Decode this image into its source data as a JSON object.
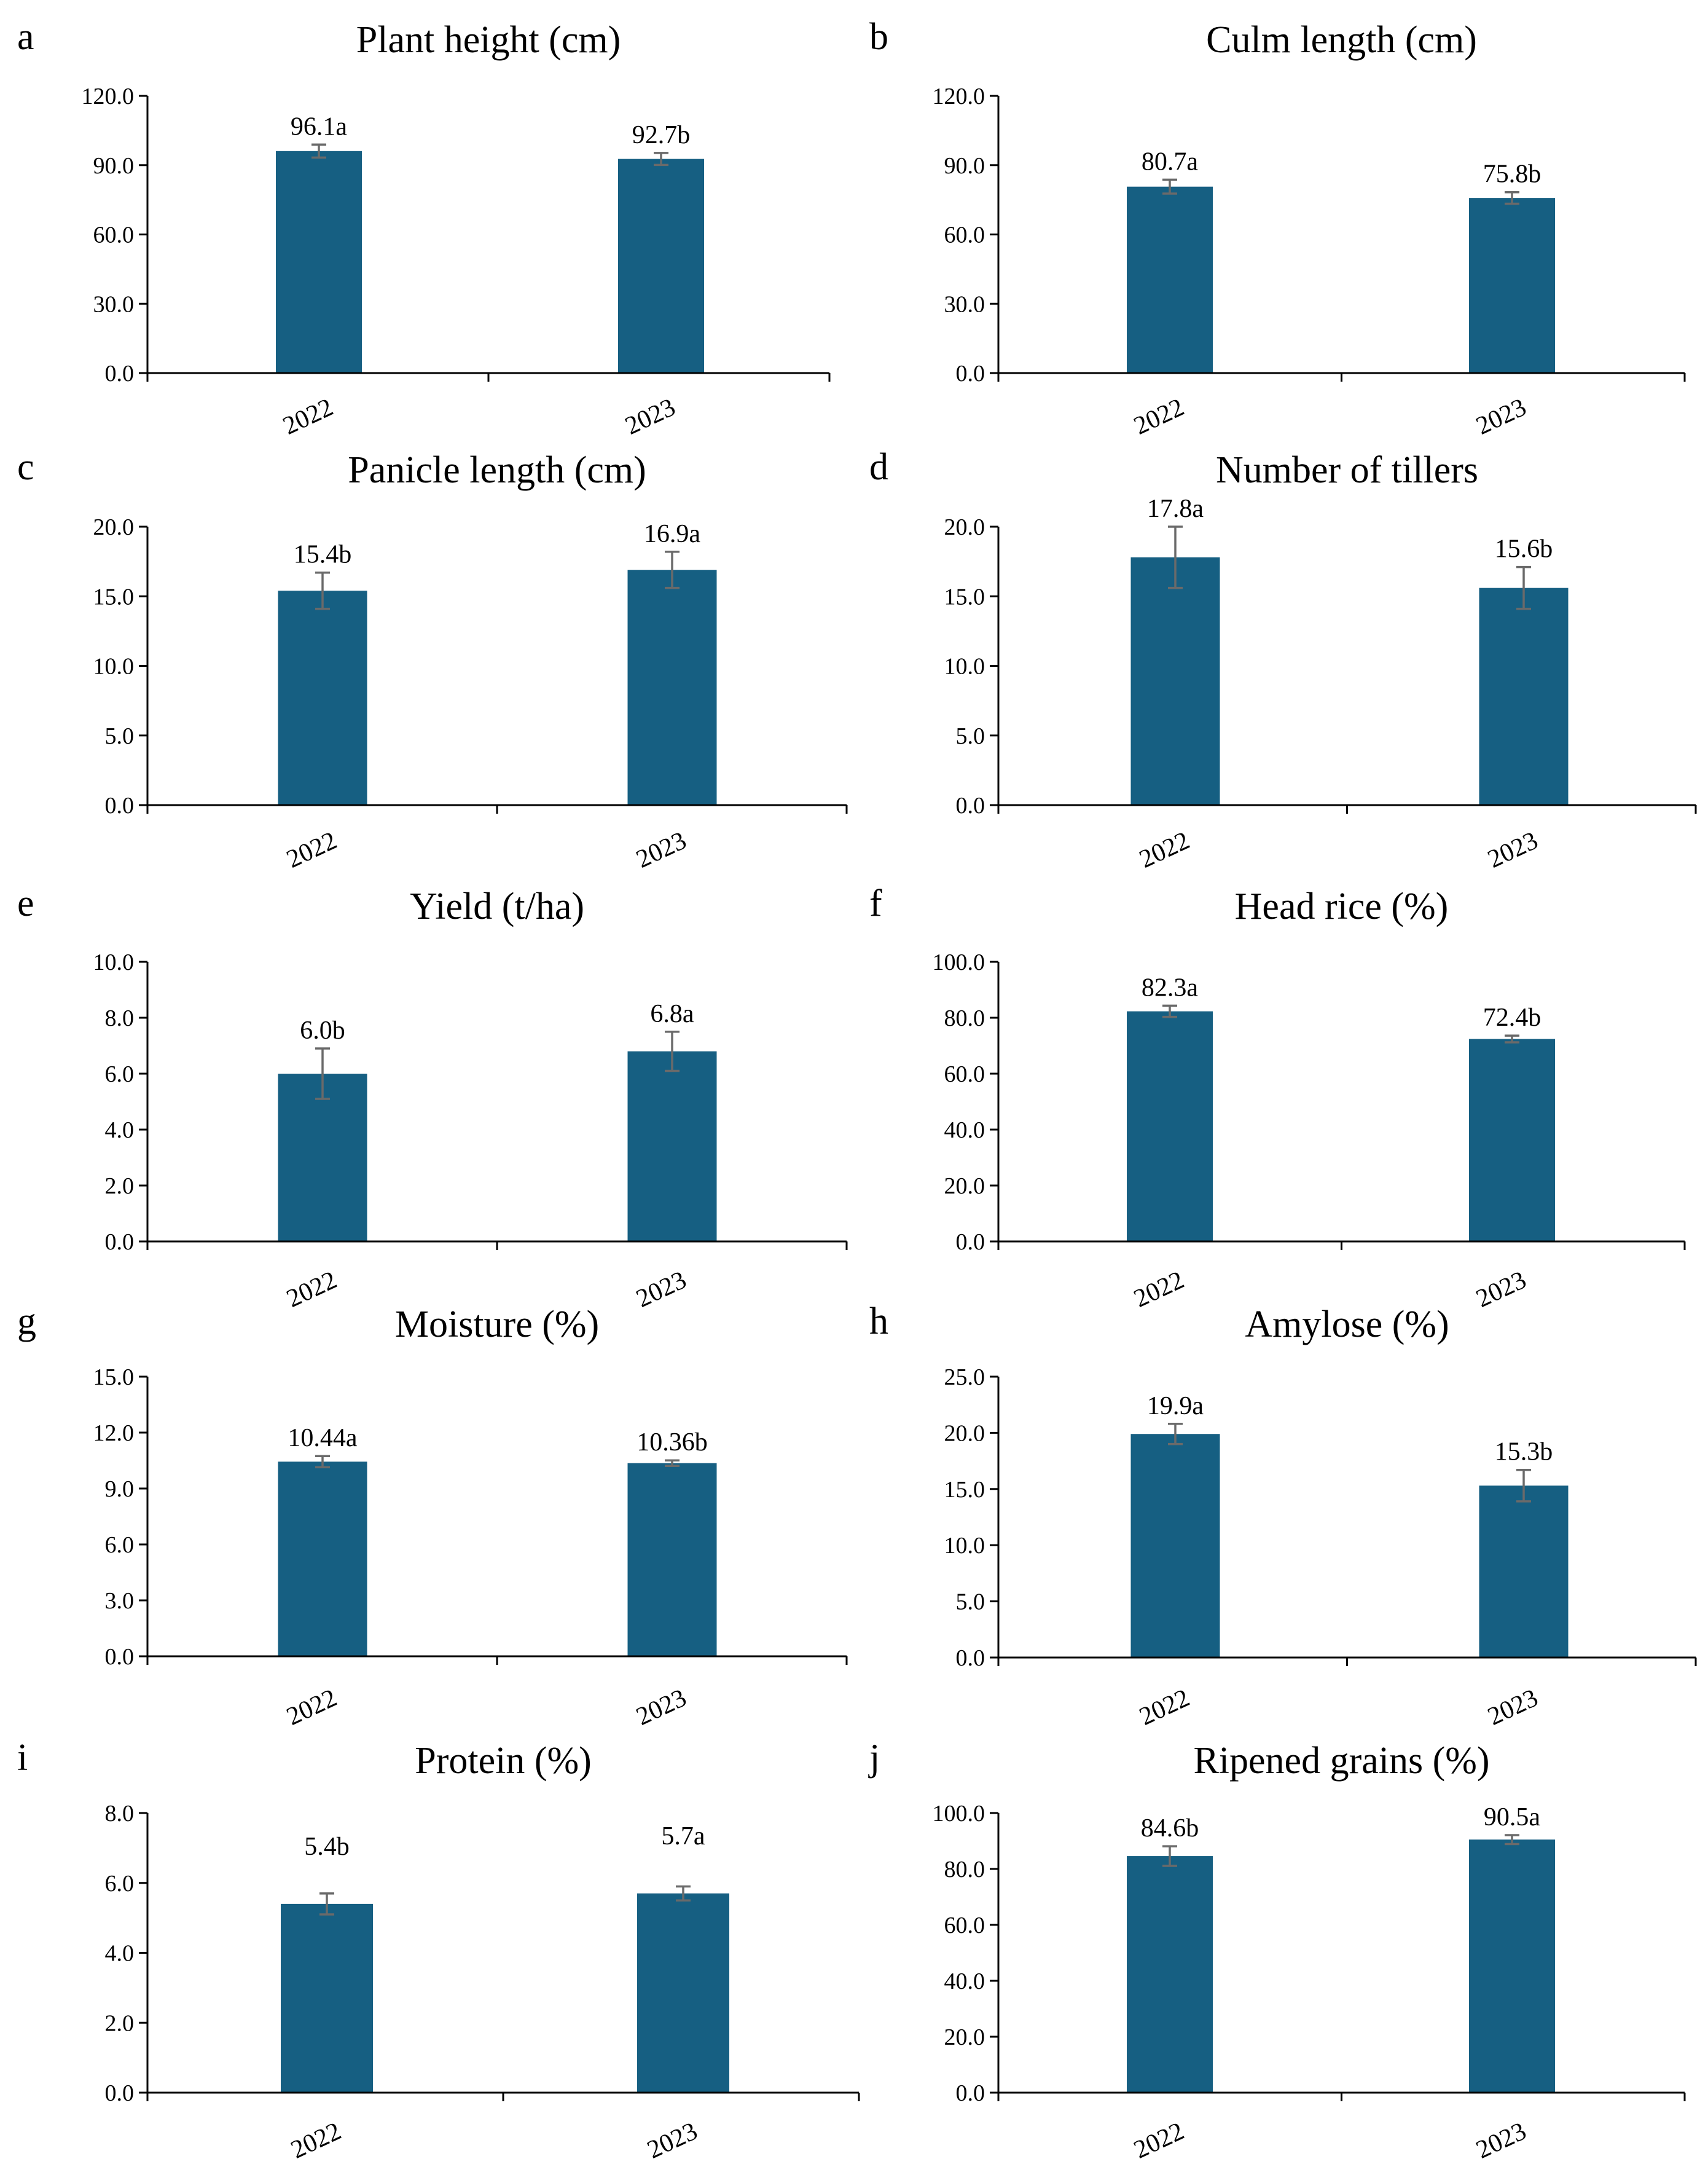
{
  "colors": {
    "bar": "#165f82",
    "axis": "#000000",
    "errorbar": "#6a6a6a"
  },
  "chart_data": [
    {
      "letter": "a",
      "type": "bar",
      "title": "Plant height (cm)",
      "categories": [
        "2022",
        "2023"
      ],
      "values": [
        96.1,
        92.7
      ],
      "errors": [
        2.8,
        2.6
      ],
      "labels": [
        "96.1a",
        "92.7b"
      ],
      "yticks": [
        "0.0",
        "30.0",
        "60.0",
        "90.0",
        "120.0"
      ],
      "ylim": [
        0,
        120
      ]
    },
    {
      "letter": "b",
      "type": "bar",
      "title": "Culm length (cm)",
      "categories": [
        "2022",
        "2023"
      ],
      "values": [
        80.7,
        75.8
      ],
      "errors": [
        3.0,
        2.5
      ],
      "labels": [
        "80.7a",
        "75.8b"
      ],
      "yticks": [
        "0.0",
        "30.0",
        "60.0",
        "90.0",
        "120.0"
      ],
      "ylim": [
        0,
        120
      ]
    },
    {
      "letter": "c",
      "type": "bar",
      "title": "Panicle length (cm)",
      "categories": [
        "2022",
        "2023"
      ],
      "values": [
        15.4,
        16.9
      ],
      "errors": [
        1.3,
        1.3
      ],
      "labels": [
        "15.4b",
        "16.9a"
      ],
      "yticks": [
        "0.0",
        "5.0",
        "10.0",
        "15.0",
        "20.0"
      ],
      "ylim": [
        0,
        20
      ]
    },
    {
      "letter": "d",
      "type": "bar",
      "title": "Number of tillers",
      "categories": [
        "2022",
        "2023"
      ],
      "values": [
        17.8,
        15.6
      ],
      "errors": [
        2.2,
        1.5
      ],
      "labels": [
        "17.8a",
        "15.6b"
      ],
      "yticks": [
        "0.0",
        "5.0",
        "10.0",
        "15.0",
        "20.0"
      ],
      "ylim": [
        0,
        20
      ]
    },
    {
      "letter": "e",
      "type": "bar",
      "title": "Yield (t/ha)",
      "categories": [
        "2022",
        "2023"
      ],
      "values": [
        6.0,
        6.8
      ],
      "errors": [
        0.9,
        0.7
      ],
      "labels": [
        "6.0b",
        "6.8a"
      ],
      "yticks": [
        "0.0",
        "2.0",
        "4.0",
        "6.0",
        "8.0",
        "10.0"
      ],
      "ylim": [
        0,
        10
      ]
    },
    {
      "letter": "f",
      "type": "bar",
      "title": "Head rice (%)",
      "categories": [
        "2022",
        "2023"
      ],
      "values": [
        82.3,
        72.4
      ],
      "errors": [
        2.0,
        1.2
      ],
      "labels": [
        "82.3a",
        "72.4b"
      ],
      "yticks": [
        "0.0",
        "20.0",
        "40.0",
        "60.0",
        "80.0",
        "100.0"
      ],
      "ylim": [
        0,
        100
      ]
    },
    {
      "letter": "g",
      "type": "bar",
      "title": "Moisture (%)",
      "categories": [
        "2022",
        "2023"
      ],
      "values": [
        10.44,
        10.36
      ],
      "errors": [
        0.3,
        0.15
      ],
      "labels": [
        "10.44a",
        "10.36b"
      ],
      "yticks": [
        "0.0",
        "3.0",
        "6.0",
        "9.0",
        "12.0",
        "15.0"
      ],
      "ylim": [
        0,
        15
      ]
    },
    {
      "letter": "h",
      "type": "bar",
      "title": "Amylose (%)",
      "categories": [
        "2022",
        "2023"
      ],
      "values": [
        19.9,
        15.3
      ],
      "errors": [
        0.9,
        1.4
      ],
      "labels": [
        "19.9a",
        "15.3b"
      ],
      "yticks": [
        "0.0",
        "5.0",
        "10.0",
        "15.0",
        "20.0",
        "25.0"
      ],
      "ylim": [
        0,
        25
      ]
    },
    {
      "letter": "i",
      "type": "bar",
      "title": "Protein (%)",
      "categories": [
        "2022",
        "2023"
      ],
      "values": [
        5.4,
        5.7
      ],
      "errors": [
        0.3,
        0.2
      ],
      "labels": [
        "5.4b",
        "5.7a"
      ],
      "yticks": [
        "0.0",
        "2.0",
        "4.0",
        "6.0",
        "8.0"
      ],
      "ylim": [
        0,
        8
      ]
    },
    {
      "letter": "j",
      "type": "bar",
      "title": "Ripened grains (%)",
      "categories": [
        "2022",
        "2023"
      ],
      "values": [
        84.6,
        90.5
      ],
      "errors": [
        3.5,
        1.6
      ],
      "labels": [
        "84.6b",
        "90.5a"
      ],
      "yticks": [
        "0.0",
        "20.0",
        "40.0",
        "60.0",
        "80.0",
        "100.0"
      ],
      "ylim": [
        0,
        100
      ]
    }
  ]
}
